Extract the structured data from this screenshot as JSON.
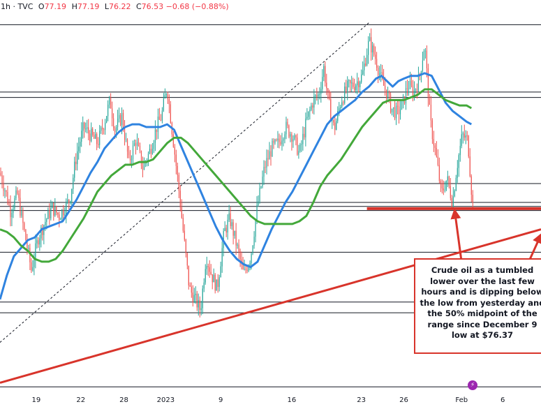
{
  "header": {
    "title": "1h · TVC",
    "open_label": "O",
    "open": "77.19",
    "high_label": "H",
    "high": "77.19",
    "low_label": "L",
    "low": "76.22",
    "close_label": "C",
    "close": "76.53",
    "change": "−0.68 (−0.88%)"
  },
  "annotation": {
    "text": "Crude oil as a tumbled lower over the last few hours and is dipping below the low from yesterday and the 50% midpoint of the range since December 9 low at $76.37"
  },
  "event_marker": {
    "icon": "lightning-icon",
    "glyph": "⚡"
  },
  "colors": {
    "up": "#26a69a",
    "down": "#ef5350",
    "ma_fast": "#2f83e0",
    "ma_slow": "#43a83a",
    "annotation": "#d8342b",
    "level_line": "#131722",
    "diagonal": "#131722"
  },
  "chart_data": {
    "type": "line",
    "title": "",
    "xlabel": "",
    "ylabel": "",
    "ylim": [
      69.6,
      83.6
    ],
    "xlim": [
      0,
      777
    ],
    "grid": false,
    "x_ticks": [
      {
        "label": "19",
        "x": 52
      },
      {
        "label": "22",
        "x": 116
      },
      {
        "label": "28",
        "x": 178
      },
      {
        "label": "2023",
        "x": 238
      },
      {
        "label": "9",
        "x": 317
      },
      {
        "label": "16",
        "x": 419
      },
      {
        "label": "23",
        "x": 519
      },
      {
        "label": "26",
        "x": 580
      },
      {
        "label": "Feb",
        "x": 663
      },
      {
        "label": "6",
        "x": 722
      }
    ],
    "horizontal_levels": [
      83.2,
      80.7,
      80.5,
      77.3,
      76.6,
      76.45,
      76.3,
      74.75,
      72.9,
      72.5,
      69.75
    ],
    "highlight_level": 76.37,
    "price_path": [
      [
        0,
        77.7
      ],
      [
        8,
        77.0
      ],
      [
        15,
        76.3
      ],
      [
        25,
        76.9
      ],
      [
        35,
        75.5
      ],
      [
        45,
        74.1
      ],
      [
        55,
        75.3
      ],
      [
        65,
        75.9
      ],
      [
        75,
        76.4
      ],
      [
        85,
        76.1
      ],
      [
        100,
        76.7
      ],
      [
        110,
        78.4
      ],
      [
        120,
        79.4
      ],
      [
        130,
        79.1
      ],
      [
        140,
        78.8
      ],
      [
        150,
        79.6
      ],
      [
        158,
        80.4
      ],
      [
        165,
        79.3
      ],
      [
        175,
        79.8
      ],
      [
        185,
        78.1
      ],
      [
        195,
        78.9
      ],
      [
        205,
        77.9
      ],
      [
        215,
        78.5
      ],
      [
        225,
        79.4
      ],
      [
        232,
        79.8
      ],
      [
        240,
        80.9
      ],
      [
        248,
        79.1
      ],
      [
        256,
        77.3
      ],
      [
        264,
        75.3
      ],
      [
        272,
        73.4
      ],
      [
        280,
        73.0
      ],
      [
        288,
        72.6
      ],
      [
        296,
        74.6
      ],
      [
        304,
        73.9
      ],
      [
        312,
        73.4
      ],
      [
        322,
        75.5
      ],
      [
        330,
        76.0
      ],
      [
        340,
        75.0
      ],
      [
        350,
        73.9
      ],
      [
        360,
        74.6
      ],
      [
        370,
        76.5
      ],
      [
        380,
        77.9
      ],
      [
        390,
        78.6
      ],
      [
        400,
        78.8
      ],
      [
        410,
        79.4
      ],
      [
        420,
        79.1
      ],
      [
        430,
        78.4
      ],
      [
        440,
        79.6
      ],
      [
        450,
        80.4
      ],
      [
        458,
        80.6
      ],
      [
        465,
        81.6
      ],
      [
        472,
        80.3
      ],
      [
        480,
        79.3
      ],
      [
        490,
        80.4
      ],
      [
        500,
        80.9
      ],
      [
        510,
        81.0
      ],
      [
        520,
        81.3
      ],
      [
        530,
        82.6
      ],
      [
        540,
        81.9
      ],
      [
        548,
        81.1
      ],
      [
        555,
        80.7
      ],
      [
        562,
        80.1
      ],
      [
        570,
        79.9
      ],
      [
        578,
        80.2
      ],
      [
        586,
        81.0
      ],
      [
        594,
        80.7
      ],
      [
        602,
        81.2
      ],
      [
        610,
        82.5
      ],
      [
        618,
        79.6
      ],
      [
        626,
        78.4
      ],
      [
        634,
        76.9
      ],
      [
        642,
        77.5
      ],
      [
        650,
        76.6
      ],
      [
        656,
        77.9
      ],
      [
        664,
        79.1
      ],
      [
        672,
        78.9
      ],
      [
        677,
        77.1
      ],
      [
        680,
        76.2
      ]
    ],
    "series": [
      {
        "name": "",
        "color": "#2f83e0",
        "points": [
          [
            0,
            73.0
          ],
          [
            10,
            73.9
          ],
          [
            20,
            74.6
          ],
          [
            30,
            74.9
          ],
          [
            40,
            75.2
          ],
          [
            50,
            75.3
          ],
          [
            60,
            75.6
          ],
          [
            70,
            75.7
          ],
          [
            80,
            75.8
          ],
          [
            90,
            75.9
          ],
          [
            100,
            76.3
          ],
          [
            110,
            76.7
          ],
          [
            120,
            77.2
          ],
          [
            130,
            77.7
          ],
          [
            140,
            78.1
          ],
          [
            150,
            78.6
          ],
          [
            160,
            78.9
          ],
          [
            170,
            79.2
          ],
          [
            180,
            79.4
          ],
          [
            190,
            79.5
          ],
          [
            200,
            79.5
          ],
          [
            210,
            79.4
          ],
          [
            220,
            79.4
          ],
          [
            230,
            79.4
          ],
          [
            240,
            79.5
          ],
          [
            250,
            79.3
          ],
          [
            260,
            78.7
          ],
          [
            270,
            78.1
          ],
          [
            280,
            77.5
          ],
          [
            290,
            76.9
          ],
          [
            300,
            76.3
          ],
          [
            310,
            75.7
          ],
          [
            320,
            75.2
          ],
          [
            330,
            74.8
          ],
          [
            340,
            74.5
          ],
          [
            350,
            74.3
          ],
          [
            360,
            74.2
          ],
          [
            370,
            74.4
          ],
          [
            380,
            75.0
          ],
          [
            390,
            75.6
          ],
          [
            400,
            76.1
          ],
          [
            410,
            76.6
          ],
          [
            420,
            77.0
          ],
          [
            430,
            77.5
          ],
          [
            440,
            78.0
          ],
          [
            450,
            78.5
          ],
          [
            460,
            79.0
          ],
          [
            470,
            79.5
          ],
          [
            480,
            79.8
          ],
          [
            490,
            80.0
          ],
          [
            500,
            80.2
          ],
          [
            510,
            80.4
          ],
          [
            520,
            80.7
          ],
          [
            530,
            80.9
          ],
          [
            540,
            81.2
          ],
          [
            548,
            81.3
          ],
          [
            556,
            81.1
          ],
          [
            564,
            80.9
          ],
          [
            572,
            81.1
          ],
          [
            580,
            81.2
          ],
          [
            590,
            81.3
          ],
          [
            600,
            81.3
          ],
          [
            610,
            81.4
          ],
          [
            620,
            81.3
          ],
          [
            630,
            80.8
          ],
          [
            640,
            80.3
          ],
          [
            650,
            80.0
          ],
          [
            660,
            79.8
          ],
          [
            670,
            79.6
          ],
          [
            677,
            79.5
          ]
        ]
      },
      {
        "name": "",
        "color": "#43a83a",
        "points": [
          [
            0,
            75.6
          ],
          [
            10,
            75.5
          ],
          [
            20,
            75.3
          ],
          [
            30,
            75.0
          ],
          [
            40,
            74.8
          ],
          [
            50,
            74.5
          ],
          [
            60,
            74.4
          ],
          [
            70,
            74.4
          ],
          [
            80,
            74.5
          ],
          [
            90,
            74.8
          ],
          [
            100,
            75.2
          ],
          [
            110,
            75.6
          ],
          [
            120,
            76.0
          ],
          [
            130,
            76.5
          ],
          [
            140,
            77.0
          ],
          [
            150,
            77.3
          ],
          [
            160,
            77.6
          ],
          [
            170,
            77.8
          ],
          [
            180,
            78.0
          ],
          [
            190,
            78.0
          ],
          [
            200,
            78.1
          ],
          [
            210,
            78.1
          ],
          [
            220,
            78.2
          ],
          [
            230,
            78.5
          ],
          [
            240,
            78.8
          ],
          [
            250,
            79.0
          ],
          [
            260,
            79.0
          ],
          [
            270,
            78.8
          ],
          [
            280,
            78.5
          ],
          [
            290,
            78.2
          ],
          [
            300,
            77.9
          ],
          [
            310,
            77.6
          ],
          [
            320,
            77.3
          ],
          [
            330,
            77.0
          ],
          [
            340,
            76.7
          ],
          [
            350,
            76.4
          ],
          [
            360,
            76.1
          ],
          [
            370,
            75.9
          ],
          [
            380,
            75.8
          ],
          [
            390,
            75.8
          ],
          [
            400,
            75.8
          ],
          [
            410,
            75.8
          ],
          [
            420,
            75.8
          ],
          [
            430,
            75.9
          ],
          [
            440,
            76.1
          ],
          [
            450,
            76.6
          ],
          [
            460,
            77.2
          ],
          [
            470,
            77.6
          ],
          [
            480,
            77.9
          ],
          [
            490,
            78.2
          ],
          [
            500,
            78.6
          ],
          [
            510,
            79.0
          ],
          [
            520,
            79.4
          ],
          [
            530,
            79.7
          ],
          [
            540,
            80.0
          ],
          [
            550,
            80.3
          ],
          [
            560,
            80.4
          ],
          [
            570,
            80.4
          ],
          [
            580,
            80.4
          ],
          [
            590,
            80.5
          ],
          [
            600,
            80.6
          ],
          [
            610,
            80.8
          ],
          [
            620,
            80.8
          ],
          [
            630,
            80.6
          ],
          [
            640,
            80.4
          ],
          [
            650,
            80.3
          ],
          [
            660,
            80.2
          ],
          [
            670,
            80.2
          ],
          [
            677,
            80.1
          ]
        ]
      }
    ],
    "diagonal_dashed": [
      [
        0,
        71.4
      ],
      [
        531,
        83.3
      ]
    ],
    "trend_line": [
      [
        0,
        69.9
      ],
      [
        777,
        75.6
      ]
    ],
    "horizontal_red_segment": {
      "y": 76.37,
      "x_start": 527,
      "x_end": 777
    },
    "arrows": [
      {
        "from": [
          667,
          73.6
        ],
        "to": [
          653,
          76.3
        ]
      },
      {
        "from": [
          728,
          72.6
        ],
        "to": [
          777,
          75.4
        ]
      }
    ]
  }
}
